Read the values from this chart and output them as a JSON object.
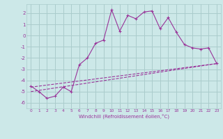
{
  "xlabel": "Windchill (Refroidissement éolien,°C)",
  "background_color": "#cce8e8",
  "grid_color": "#aacccc",
  "line_color": "#993399",
  "xlim": [
    -0.5,
    23.5
  ],
  "ylim": [
    -6.5,
    2.8
  ],
  "xticks": [
    0,
    1,
    2,
    3,
    4,
    5,
    6,
    7,
    8,
    9,
    10,
    11,
    12,
    13,
    14,
    15,
    16,
    17,
    18,
    19,
    20,
    21,
    22,
    23
  ],
  "yticks": [
    -6,
    -5,
    -4,
    -3,
    -2,
    -1,
    0,
    1,
    2
  ],
  "series1_x": [
    0,
    1,
    2,
    3,
    4,
    5,
    6,
    7,
    8,
    9,
    10,
    11,
    12,
    13,
    14,
    15,
    16,
    17,
    18,
    19,
    20,
    21,
    22,
    23
  ],
  "series1_y": [
    -4.5,
    -5.0,
    -5.6,
    -5.4,
    -4.6,
    -5.0,
    -2.6,
    -2.0,
    -0.7,
    -0.4,
    2.3,
    0.4,
    1.8,
    1.5,
    2.1,
    2.2,
    0.6,
    1.6,
    0.3,
    -0.8,
    -1.1,
    -1.2,
    -1.1,
    -2.5
  ],
  "series2_x": [
    0,
    23
  ],
  "series2_y": [
    -5.0,
    -2.5
  ],
  "series3_x": [
    0,
    23
  ],
  "series3_y": [
    -4.6,
    -2.5
  ]
}
